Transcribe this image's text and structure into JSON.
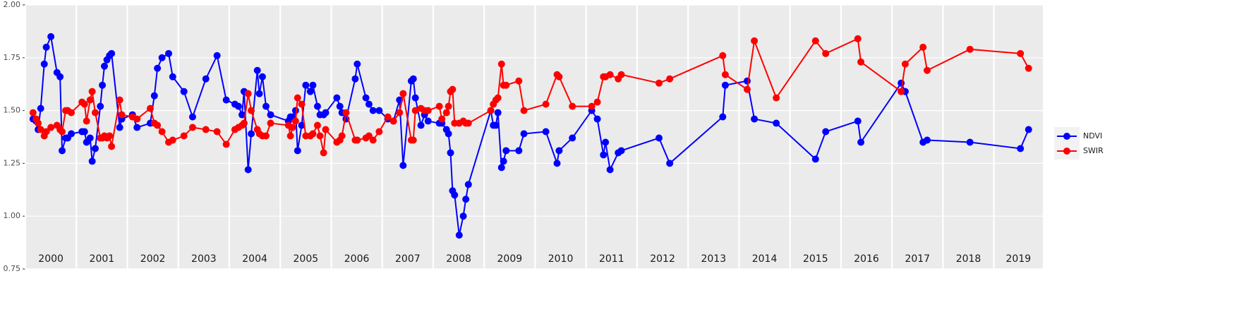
{
  "chart_data": {
    "type": "line",
    "x": [
      2000.15,
      2000.21,
      2000.25,
      2000.3,
      2000.37,
      2000.41,
      2000.5,
      2000.62,
      2000.68,
      2000.72,
      2000.79,
      2000.83,
      2000.9,
      2001.11,
      2001.16,
      2001.2,
      2001.27,
      2001.31,
      2001.37,
      2001.47,
      2001.51,
      2001.55,
      2001.6,
      2001.65,
      2001.69,
      2001.85,
      2001.89,
      2002.1,
      2002.19,
      2002.45,
      2002.53,
      2002.59,
      2002.68,
      2002.81,
      2002.89,
      2003.11,
      2003.28,
      2003.54,
      2003.76,
      2003.94,
      2004.11,
      2004.18,
      2004.25,
      2004.29,
      2004.37,
      2004.43,
      2004.55,
      2004.59,
      2004.65,
      2004.72,
      2004.81,
      2005.16,
      2005.2,
      2005.24,
      2005.3,
      2005.34,
      2005.42,
      2005.5,
      2005.59,
      2005.64,
      2005.73,
      2005.78,
      2005.85,
      2005.89,
      2006.11,
      2006.17,
      2006.21,
      2006.29,
      2006.47,
      2006.51,
      2006.68,
      2006.74,
      2006.82,
      2006.94,
      2007.11,
      2007.22,
      2007.34,
      2007.41,
      2007.57,
      2007.61,
      2007.65,
      2007.76,
      2007.83,
      2007.9,
      2008.12,
      2008.17,
      2008.26,
      2008.3,
      2008.34,
      2008.38,
      2008.42,
      2008.51,
      2008.59,
      2008.64,
      2008.69,
      2009.13,
      2009.18,
      2009.23,
      2009.27,
      2009.34,
      2009.38,
      2009.43,
      2009.68,
      2009.78,
      2010.21,
      2010.43,
      2010.47,
      2010.73,
      2011.11,
      2011.22,
      2011.34,
      2011.38,
      2011.47,
      2011.63,
      2011.69,
      2012.43,
      2012.64,
      2013.68,
      2013.73,
      2014.16,
      2014.3,
      2014.73,
      2015.5,
      2015.7,
      2016.33,
      2016.39,
      2017.18,
      2017.26,
      2017.61,
      2017.69,
      2018.53,
      2019.52,
      2019.68
    ],
    "series": [
      {
        "name": "NDVI",
        "color": "#0000ff",
        "values": [
          1.46,
          1.45,
          1.41,
          1.51,
          1.72,
          1.8,
          1.85,
          1.68,
          1.66,
          1.31,
          1.37,
          1.37,
          1.39,
          1.4,
          1.4,
          1.35,
          1.37,
          1.26,
          1.32,
          1.52,
          1.62,
          1.71,
          1.74,
          1.76,
          1.77,
          1.42,
          1.46,
          1.48,
          1.42,
          1.44,
          1.57,
          1.7,
          1.75,
          1.77,
          1.66,
          1.59,
          1.47,
          1.65,
          1.76,
          1.55,
          1.53,
          1.52,
          1.48,
          1.59,
          1.22,
          1.39,
          1.69,
          1.58,
          1.66,
          1.52,
          1.48,
          1.45,
          1.47,
          1.47,
          1.5,
          1.31,
          1.43,
          1.62,
          1.59,
          1.62,
          1.52,
          1.48,
          1.48,
          1.49,
          1.56,
          1.52,
          1.49,
          1.46,
          1.65,
          1.72,
          1.56,
          1.53,
          1.5,
          1.5,
          1.46,
          1.45,
          1.55,
          1.24,
          1.64,
          1.65,
          1.56,
          1.43,
          1.48,
          1.45,
          1.44,
          1.44,
          1.41,
          1.39,
          1.3,
          1.12,
          1.1,
          0.91,
          1.0,
          1.08,
          1.15,
          1.5,
          1.43,
          1.43,
          1.49,
          1.23,
          1.26,
          1.31,
          1.31,
          1.39,
          1.4,
          1.25,
          1.31,
          1.37,
          1.5,
          1.46,
          1.29,
          1.35,
          1.22,
          1.3,
          1.31,
          1.37,
          1.25,
          1.47,
          1.62,
          1.64,
          1.46,
          1.44,
          1.27,
          1.4,
          1.45,
          1.35,
          1.63,
          1.59,
          1.35,
          1.36,
          1.35,
          1.32,
          1.41
        ]
      },
      {
        "name": "SWIR",
        "color": "#ff0000",
        "values": [
          1.49,
          1.46,
          1.44,
          1.41,
          1.38,
          1.4,
          1.42,
          1.43,
          1.41,
          1.4,
          1.5,
          1.5,
          1.49,
          1.54,
          1.53,
          1.45,
          1.55,
          1.59,
          1.49,
          1.37,
          1.37,
          1.38,
          1.37,
          1.38,
          1.33,
          1.55,
          1.48,
          1.47,
          1.46,
          1.51,
          1.44,
          1.43,
          1.4,
          1.35,
          1.36,
          1.38,
          1.42,
          1.41,
          1.4,
          1.34,
          1.41,
          1.42,
          1.43,
          1.44,
          1.58,
          1.5,
          1.41,
          1.39,
          1.38,
          1.38,
          1.44,
          1.43,
          1.38,
          1.42,
          1.45,
          1.56,
          1.53,
          1.38,
          1.38,
          1.39,
          1.43,
          1.38,
          1.3,
          1.41,
          1.35,
          1.36,
          1.38,
          1.49,
          1.36,
          1.36,
          1.37,
          1.38,
          1.36,
          1.4,
          1.47,
          1.45,
          1.49,
          1.58,
          1.36,
          1.36,
          1.5,
          1.51,
          1.5,
          1.5,
          1.52,
          1.46,
          1.49,
          1.52,
          1.59,
          1.6,
          1.44,
          1.44,
          1.45,
          1.44,
          1.44,
          1.5,
          1.53,
          1.55,
          1.56,
          1.72,
          1.62,
          1.62,
          1.64,
          1.5,
          1.53,
          1.67,
          1.66,
          1.52,
          1.52,
          1.54,
          1.66,
          1.66,
          1.67,
          1.65,
          1.67,
          1.63,
          1.65,
          1.76,
          1.67,
          1.6,
          1.83,
          1.56,
          1.83,
          1.77,
          1.84,
          1.73,
          1.59,
          1.72,
          1.8,
          1.69,
          1.79,
          1.77,
          1.7
        ]
      }
    ],
    "xlim": [
      2000,
      2019.96
    ],
    "xticks": [
      2000,
      2001,
      2002,
      2003,
      2004,
      2005,
      2006,
      2007,
      2008,
      2009,
      2010,
      2011,
      2012,
      2013,
      2014,
      2015,
      2016,
      2017,
      2018,
      2019
    ],
    "ylim": [
      0.75,
      2.0
    ],
    "yticks": [
      {
        "value": 0.75,
        "label": "0.75"
      },
      {
        "value": 1.0,
        "label": "1.00"
      },
      {
        "value": 1.25,
        "label": "1.25"
      },
      {
        "value": 1.5,
        "label": "1.50"
      },
      {
        "value": 1.75,
        "label": "1.75"
      },
      {
        "value": 2.0,
        "label": "2.00"
      }
    ],
    "grid": true
  }
}
